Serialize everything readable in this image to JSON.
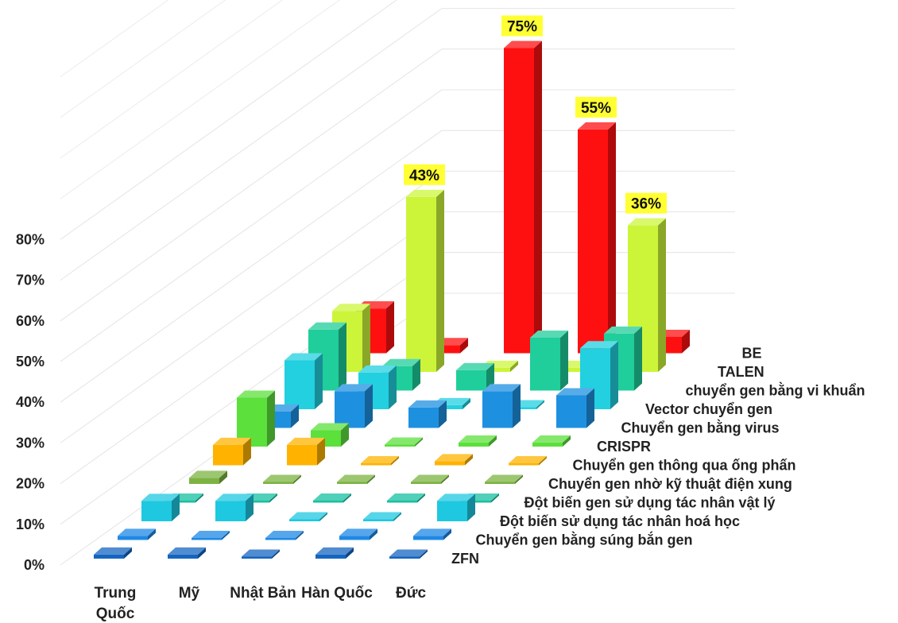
{
  "chart_data": {
    "type": "bar",
    "subtype": "3d-column",
    "title": "",
    "xlabel": "",
    "ylabel": "",
    "ylim": [
      0,
      80
    ],
    "y_ticks": [
      "0%",
      "10%",
      "20%",
      "30%",
      "40%",
      "50%",
      "60%",
      "70%",
      "80%"
    ],
    "grid": true,
    "categories": [
      "Trung Quốc",
      "Mỹ",
      "Nhật Bản",
      "Hàn Quốc",
      "Đức"
    ],
    "series": [
      {
        "name": "ZFN",
        "color": "#1565c0",
        "values": [
          1,
          1,
          0.5,
          1,
          0.5
        ]
      },
      {
        "name": "Chuyển gen bằng súng bắn gen",
        "color": "#1e88e5",
        "values": [
          1,
          0.5,
          0.5,
          1,
          1
        ]
      },
      {
        "name": "Đột biến sử dụng tác nhân hoá học",
        "color": "#1ec8e0",
        "values": [
          5,
          5,
          0.5,
          0.5,
          5
        ]
      },
      {
        "name": "Đột biến gen sử dụng tác nhân vật lý",
        "color": "#16c0a0",
        "values": [
          0.5,
          0.5,
          0.5,
          0.5,
          0.5
        ]
      },
      {
        "name": "Chuyển gen nhờ kỹ thuật điện xung",
        "color": "#7cb342",
        "values": [
          1.5,
          0.5,
          0.5,
          0.5,
          0.5
        ]
      },
      {
        "name": "Chuyển gen thông qua ống phấn",
        "color": "#ffb300",
        "values": [
          5,
          5,
          0.5,
          1,
          0.5
        ]
      },
      {
        "name": "CRISPR",
        "color": "#5ce03c",
        "values": [
          12,
          4,
          0.5,
          1,
          1
        ]
      },
      {
        "name": "Chuyển gen bằng virus",
        "color": "#1e90e0",
        "values": [
          4,
          9,
          5,
          9,
          8
        ]
      },
      {
        "name": "Vector chuyển gen",
        "color": "#22d0e0",
        "values": [
          12,
          9,
          1,
          0.5,
          15
        ]
      },
      {
        "name": "chuyển gen bằng vi khuẩn",
        "color": "#1fce9a",
        "values": [
          15,
          6,
          5,
          13,
          14
        ]
      },
      {
        "name": "TALEN",
        "color": "#ccf53a",
        "values": [
          15,
          43,
          1,
          1,
          36
        ]
      },
      {
        "name": "BE",
        "color": "#ff1010",
        "values": [
          11,
          2,
          75,
          55,
          4
        ]
      }
    ],
    "data_labels": [
      {
        "series": "TALEN",
        "category": "Mỹ",
        "text": "43%"
      },
      {
        "series": "BE",
        "category": "Nhật Bản",
        "text": "75%"
      },
      {
        "series": "BE",
        "category": "Hàn Quốc",
        "text": "55%"
      },
      {
        "series": "TALEN",
        "category": "Đức",
        "text": "36%"
      }
    ]
  }
}
